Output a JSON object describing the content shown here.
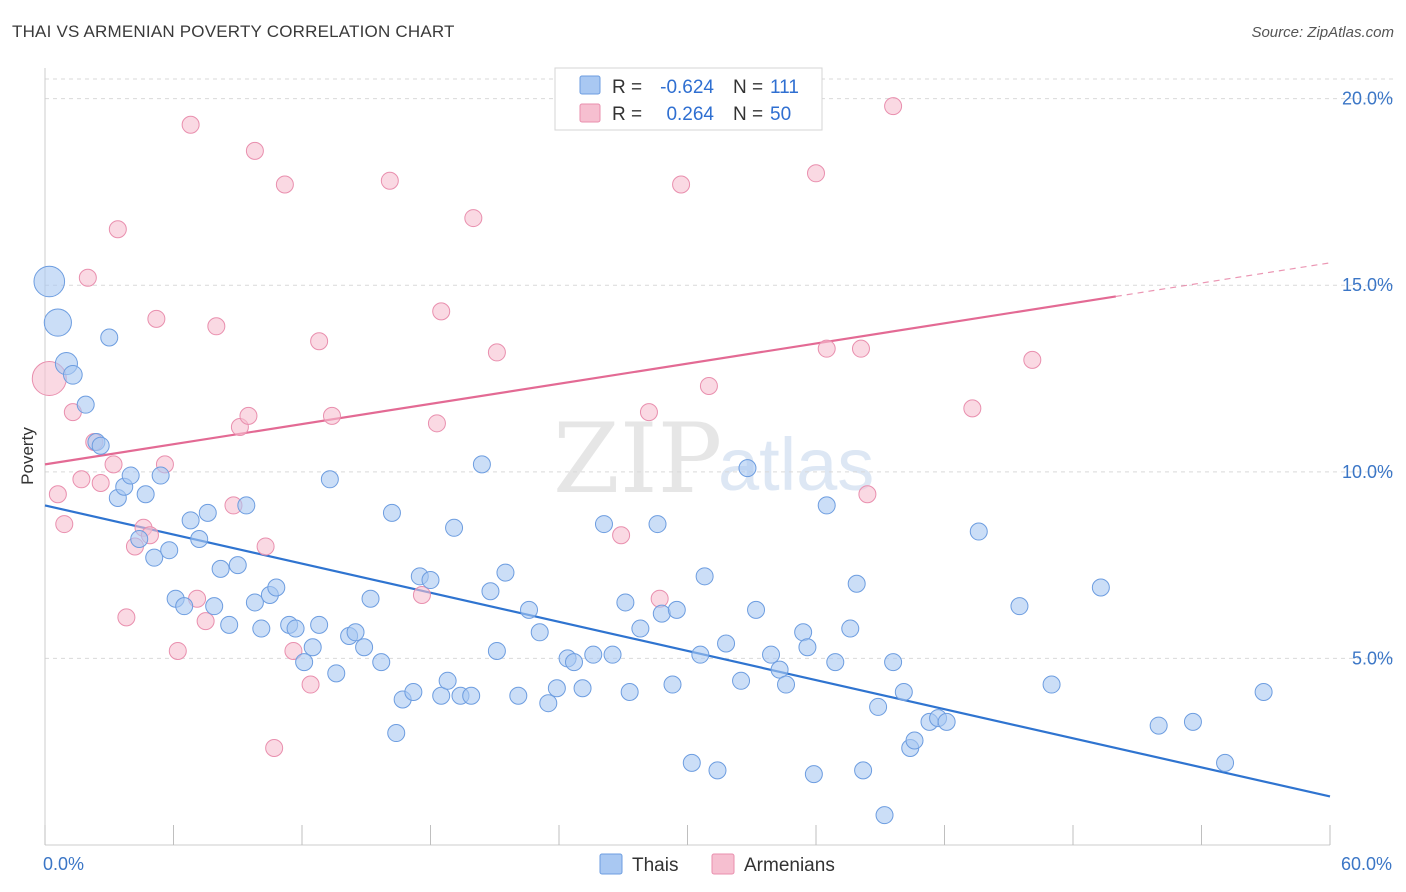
{
  "title": "THAI VS ARMENIAN POVERTY CORRELATION CHART",
  "source": "Source: ZipAtlas.com",
  "watermark": {
    "part1": "ZIP",
    "part2": "atlas"
  },
  "colors": {
    "thai_fill": "#a9c8f2",
    "thai_stroke": "#6d9de0",
    "thai_line": "#2f74d0",
    "arm_fill": "#f6bfd0",
    "arm_stroke": "#e98fae",
    "arm_line": "#e36a94",
    "axis_text": "#3b76c6",
    "grid": "#d9d9d9"
  },
  "legend": {
    "rows": [
      {
        "r_label": "R =",
        "r_value": "-0.624",
        "n_label": "N =",
        "n_value": "111"
      },
      {
        "r_label": "R =",
        "r_value": "0.264",
        "n_label": "N =",
        "n_value": "50"
      }
    ]
  },
  "bottom_legend": {
    "thai": "Thais",
    "arm": "Armenians"
  },
  "chart_data": {
    "type": "scatter",
    "title": "THAI VS ARMENIAN POVERTY CORRELATION CHART",
    "xlabel": "",
    "ylabel": "Poverty",
    "xlim": [
      0,
      60
    ],
    "ylim": [
      0,
      20.5
    ],
    "x_tick_labels": [
      "0.0%",
      "60.0%"
    ],
    "y_ticks": [
      5,
      10,
      15,
      20
    ],
    "y_tick_labels": [
      "5.0%",
      "10.0%",
      "15.0%",
      "20.0%"
    ],
    "grid": "horizontal dashed",
    "legend_position": "top-center",
    "series": [
      {
        "name": "Thais",
        "r": -0.624,
        "n": 111,
        "trend": {
          "x": [
            0,
            60
          ],
          "y": [
            9.1,
            1.3
          ]
        },
        "points": [
          [
            0.2,
            15.1,
            1.8
          ],
          [
            0.6,
            14.0,
            1.6
          ],
          [
            1.0,
            12.9,
            1.3
          ],
          [
            1.3,
            12.6,
            1.1
          ],
          [
            1.9,
            11.8,
            1.0
          ],
          [
            2.4,
            10.8,
            1.0
          ],
          [
            2.6,
            10.7,
            1.0
          ],
          [
            3.0,
            13.6,
            1.0
          ],
          [
            3.4,
            9.3,
            1.0
          ],
          [
            3.7,
            9.6,
            1.0
          ],
          [
            4.0,
            9.9,
            1.0
          ],
          [
            4.4,
            8.2,
            1.0
          ],
          [
            4.7,
            9.4,
            1.0
          ],
          [
            5.1,
            7.7,
            1.0
          ],
          [
            5.4,
            9.9,
            1.0
          ],
          [
            5.8,
            7.9,
            1.0
          ],
          [
            6.1,
            6.6,
            1.0
          ],
          [
            6.5,
            6.4,
            1.0
          ],
          [
            6.8,
            8.7,
            1.0
          ],
          [
            7.2,
            8.2,
            1.0
          ],
          [
            7.6,
            8.9,
            1.0
          ],
          [
            7.9,
            6.4,
            1.0
          ],
          [
            8.2,
            7.4,
            1.0
          ],
          [
            8.6,
            5.9,
            1.0
          ],
          [
            9.0,
            7.5,
            1.0
          ],
          [
            9.4,
            9.1,
            1.0
          ],
          [
            9.8,
            6.5,
            1.0
          ],
          [
            10.1,
            5.8,
            1.0
          ],
          [
            10.5,
            6.7,
            1.0
          ],
          [
            10.8,
            6.9,
            1.0
          ],
          [
            11.4,
            5.9,
            1.0
          ],
          [
            11.7,
            5.8,
            1.0
          ],
          [
            12.1,
            4.9,
            1.0
          ],
          [
            12.5,
            5.3,
            1.0
          ],
          [
            12.8,
            5.9,
            1.0
          ],
          [
            13.3,
            9.8,
            1.0
          ],
          [
            13.6,
            4.6,
            1.0
          ],
          [
            14.2,
            5.6,
            1.0
          ],
          [
            14.5,
            5.7,
            1.0
          ],
          [
            14.9,
            5.3,
            1.0
          ],
          [
            15.2,
            6.6,
            1.0
          ],
          [
            15.7,
            4.9,
            1.0
          ],
          [
            16.2,
            8.9,
            1.0
          ],
          [
            16.4,
            3.0,
            1.0
          ],
          [
            16.7,
            3.9,
            1.0
          ],
          [
            17.2,
            4.1,
            1.0
          ],
          [
            17.5,
            7.2,
            1.0
          ],
          [
            18.0,
            7.1,
            1.0
          ],
          [
            18.5,
            4.0,
            1.0
          ],
          [
            18.8,
            4.4,
            1.0
          ],
          [
            19.1,
            8.5,
            1.0
          ],
          [
            19.4,
            4.0,
            1.0
          ],
          [
            19.9,
            4.0,
            1.0
          ],
          [
            20.4,
            10.2,
            1.0
          ],
          [
            20.8,
            6.8,
            1.0
          ],
          [
            21.1,
            5.2,
            1.0
          ],
          [
            21.5,
            7.3,
            1.0
          ],
          [
            22.1,
            4.0,
            1.0
          ],
          [
            22.6,
            6.3,
            1.0
          ],
          [
            23.1,
            5.7,
            1.0
          ],
          [
            23.5,
            3.8,
            1.0
          ],
          [
            23.9,
            4.2,
            1.0
          ],
          [
            24.4,
            5.0,
            1.0
          ],
          [
            24.7,
            4.9,
            1.0
          ],
          [
            25.1,
            4.2,
            1.0
          ],
          [
            25.6,
            5.1,
            1.0
          ],
          [
            26.1,
            8.6,
            1.0
          ],
          [
            26.5,
            5.1,
            1.0
          ],
          [
            27.1,
            6.5,
            1.0
          ],
          [
            27.3,
            4.1,
            1.0
          ],
          [
            27.8,
            5.8,
            1.0
          ],
          [
            28.6,
            8.6,
            1.0
          ],
          [
            28.8,
            6.2,
            1.0
          ],
          [
            29.3,
            4.3,
            1.0
          ],
          [
            29.5,
            6.3,
            1.0
          ],
          [
            30.2,
            2.2,
            1.0
          ],
          [
            30.6,
            5.1,
            1.0
          ],
          [
            30.8,
            7.2,
            1.0
          ],
          [
            31.4,
            2.0,
            1.0
          ],
          [
            31.8,
            5.4,
            1.0
          ],
          [
            32.5,
            4.4,
            1.0
          ],
          [
            32.8,
            10.1,
            1.0
          ],
          [
            33.2,
            6.3,
            1.0
          ],
          [
            33.9,
            5.1,
            1.0
          ],
          [
            34.3,
            4.7,
            1.0
          ],
          [
            34.6,
            4.3,
            1.0
          ],
          [
            35.4,
            5.7,
            1.0
          ],
          [
            35.6,
            5.3,
            1.0
          ],
          [
            35.9,
            1.9,
            1.0
          ],
          [
            36.5,
            9.1,
            1.0
          ],
          [
            36.9,
            4.9,
            1.0
          ],
          [
            37.6,
            5.8,
            1.0
          ],
          [
            37.9,
            7.0,
            1.0
          ],
          [
            38.2,
            2.0,
            1.0
          ],
          [
            38.9,
            3.7,
            1.0
          ],
          [
            39.2,
            0.8,
            1.0
          ],
          [
            39.6,
            4.9,
            1.0
          ],
          [
            40.1,
            4.1,
            1.0
          ],
          [
            40.4,
            2.6,
            1.0
          ],
          [
            40.6,
            2.8,
            1.0
          ],
          [
            41.3,
            3.3,
            1.0
          ],
          [
            41.7,
            3.4,
            1.0
          ],
          [
            42.1,
            3.3,
            1.0
          ],
          [
            43.6,
            8.4,
            1.0
          ],
          [
            45.5,
            6.4,
            1.0
          ],
          [
            47.0,
            4.3,
            1.0
          ],
          [
            49.3,
            6.9,
            1.0
          ],
          [
            52.0,
            3.2,
            1.0
          ],
          [
            53.6,
            3.3,
            1.0
          ],
          [
            55.1,
            2.2,
            1.0
          ],
          [
            56.9,
            4.1,
            1.0
          ]
        ]
      },
      {
        "name": "Armenians",
        "r": 0.264,
        "n": 50,
        "trend": {
          "x": [
            0,
            50
          ],
          "y": [
            10.2,
            14.7
          ]
        },
        "trend_dashed": {
          "x": [
            50,
            60
          ],
          "y": [
            14.7,
            15.6
          ]
        },
        "points": [
          [
            0.2,
            12.5,
            2.0
          ],
          [
            0.6,
            9.4,
            1.0
          ],
          [
            0.9,
            8.6,
            1.0
          ],
          [
            1.3,
            11.6,
            1.0
          ],
          [
            1.7,
            9.8,
            1.0
          ],
          [
            2.0,
            15.2,
            1.0
          ],
          [
            2.3,
            10.8,
            1.0
          ],
          [
            2.6,
            9.7,
            1.0
          ],
          [
            3.2,
            10.2,
            1.0
          ],
          [
            3.4,
            16.5,
            1.0
          ],
          [
            3.8,
            6.1,
            1.0
          ],
          [
            4.2,
            8.0,
            1.0
          ],
          [
            4.6,
            8.5,
            1.0
          ],
          [
            4.9,
            8.3,
            1.0
          ],
          [
            5.2,
            14.1,
            1.0
          ],
          [
            5.6,
            10.2,
            1.0
          ],
          [
            6.2,
            5.2,
            1.0
          ],
          [
            6.8,
            19.3,
            1.0
          ],
          [
            7.1,
            6.6,
            1.0
          ],
          [
            7.5,
            6.0,
            1.0
          ],
          [
            8.0,
            13.9,
            1.0
          ],
          [
            8.8,
            9.1,
            1.0
          ],
          [
            9.1,
            11.2,
            1.0
          ],
          [
            9.5,
            11.5,
            1.0
          ],
          [
            9.8,
            18.6,
            1.0
          ],
          [
            10.3,
            8.0,
            1.0
          ],
          [
            10.7,
            2.6,
            1.0
          ],
          [
            11.2,
            17.7,
            1.0
          ],
          [
            11.6,
            5.2,
            1.0
          ],
          [
            12.4,
            4.3,
            1.0
          ],
          [
            12.8,
            13.5,
            1.0
          ],
          [
            13.4,
            11.5,
            1.0
          ],
          [
            16.1,
            17.8,
            1.0
          ],
          [
            17.6,
            6.7,
            1.0
          ],
          [
            18.3,
            11.3,
            1.0
          ],
          [
            18.5,
            14.3,
            1.0
          ],
          [
            20.0,
            16.8,
            1.0
          ],
          [
            21.1,
            13.2,
            1.0
          ],
          [
            26.9,
            8.3,
            1.0
          ],
          [
            28.2,
            11.6,
            1.0
          ],
          [
            28.7,
            6.6,
            1.0
          ],
          [
            29.7,
            17.7,
            1.0
          ],
          [
            31.0,
            12.3,
            1.0
          ],
          [
            36.0,
            18.0,
            1.0
          ],
          [
            36.5,
            13.3,
            1.0
          ],
          [
            38.1,
            13.3,
            1.0
          ],
          [
            38.4,
            9.4,
            1.0
          ],
          [
            39.6,
            19.8,
            1.0
          ],
          [
            43.3,
            11.7,
            1.0
          ],
          [
            46.1,
            13.0,
            1.0
          ]
        ]
      }
    ]
  }
}
